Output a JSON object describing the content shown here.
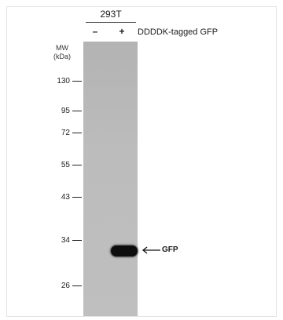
{
  "header": {
    "cell_line": "293T",
    "lanes": [
      "–",
      "+"
    ],
    "construct": "DDDDK-tagged GFP"
  },
  "ladder": {
    "title_line1": "MW",
    "title_line2": "(kDa)",
    "markers": [
      "130",
      "95",
      "72",
      "55",
      "43",
      "34",
      "26"
    ]
  },
  "band": {
    "label": "GFP",
    "lane": 2,
    "kda_estimate": 31
  },
  "colors": {
    "membrane": "#bcbcbc",
    "band": "#0d0d0d"
  }
}
